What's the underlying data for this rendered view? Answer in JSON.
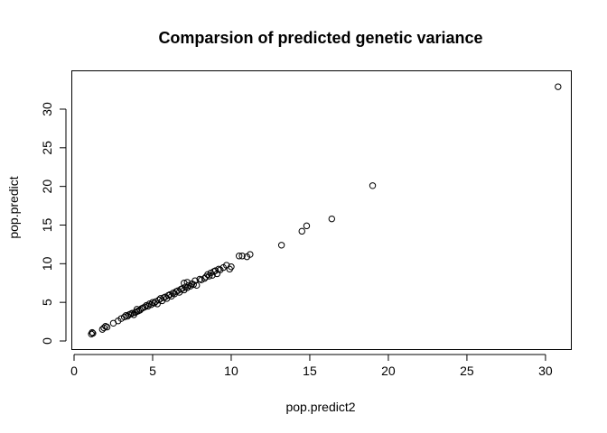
{
  "chart_data": {
    "type": "scatter",
    "title": "Comparsion of predicted genetic variance",
    "xlabel": "pop.predict2",
    "ylabel": "pop.predict",
    "xlim": [
      0,
      31.5
    ],
    "ylim": [
      0,
      33.5
    ],
    "xticks": [
      0,
      5,
      10,
      15,
      20,
      25,
      30
    ],
    "yticks": [
      0,
      5,
      10,
      15,
      20,
      25,
      30
    ],
    "grid": false,
    "legend": "none",
    "marker_color": "#000000",
    "points": [
      [
        1.1,
        0.9
      ],
      [
        1.15,
        1.1
      ],
      [
        1.2,
        1.0
      ],
      [
        1.8,
        1.5
      ],
      [
        1.9,
        1.7
      ],
      [
        2.0,
        1.9
      ],
      [
        2.1,
        1.8
      ],
      [
        2.5,
        2.3
      ],
      [
        2.8,
        2.6
      ],
      [
        3.0,
        2.9
      ],
      [
        3.2,
        3.1
      ],
      [
        3.3,
        3.3
      ],
      [
        3.4,
        3.2
      ],
      [
        3.5,
        3.4
      ],
      [
        3.6,
        3.5
      ],
      [
        3.7,
        3.6
      ],
      [
        3.8,
        3.4
      ],
      [
        3.9,
        3.7
      ],
      [
        4.0,
        3.8
      ],
      [
        4.0,
        4.1
      ],
      [
        4.1,
        3.9
      ],
      [
        4.2,
        4.0
      ],
      [
        4.3,
        4.2
      ],
      [
        4.4,
        4.3
      ],
      [
        4.5,
        4.4
      ],
      [
        4.6,
        4.6
      ],
      [
        4.7,
        4.5
      ],
      [
        4.8,
        4.8
      ],
      [
        4.9,
        4.7
      ],
      [
        5.0,
        5.0
      ],
      [
        5.1,
        4.9
      ],
      [
        5.2,
        5.1
      ],
      [
        5.3,
        4.8
      ],
      [
        5.4,
        5.3
      ],
      [
        5.5,
        5.5
      ],
      [
        5.6,
        5.2
      ],
      [
        5.7,
        5.6
      ],
      [
        5.8,
        5.7
      ],
      [
        5.9,
        5.5
      ],
      [
        6.0,
        5.9
      ],
      [
        6.1,
        6.0
      ],
      [
        6.2,
        5.8
      ],
      [
        6.3,
        6.2
      ],
      [
        6.4,
        6.1
      ],
      [
        6.5,
        6.4
      ],
      [
        6.6,
        6.5
      ],
      [
        6.7,
        6.3
      ],
      [
        6.8,
        6.7
      ],
      [
        6.9,
        6.8
      ],
      [
        7.0,
        6.6
      ],
      [
        7.1,
        7.0
      ],
      [
        7.2,
        6.9
      ],
      [
        7.3,
        7.2
      ],
      [
        7.4,
        7.1
      ],
      [
        7.5,
        7.4
      ],
      [
        7.6,
        7.3
      ],
      [
        7.0,
        7.5
      ],
      [
        7.2,
        7.6
      ],
      [
        7.7,
        7.8
      ],
      [
        7.8,
        7.2
      ],
      [
        8.0,
        8.0
      ],
      [
        8.1,
        7.9
      ],
      [
        8.3,
        8.1
      ],
      [
        8.4,
        8.3
      ],
      [
        8.5,
        8.6
      ],
      [
        8.6,
        8.4
      ],
      [
        8.7,
        8.8
      ],
      [
        8.8,
        8.5
      ],
      [
        8.9,
        9.0
      ],
      [
        9.0,
        9.1
      ],
      [
        9.1,
        8.7
      ],
      [
        9.2,
        9.3
      ],
      [
        9.3,
        9.2
      ],
      [
        9.5,
        9.5
      ],
      [
        9.7,
        9.8
      ],
      [
        9.9,
        9.3
      ],
      [
        10.0,
        9.6
      ],
      [
        10.5,
        11.0
      ],
      [
        10.7,
        11.0
      ],
      [
        11.0,
        10.9
      ],
      [
        11.2,
        11.2
      ],
      [
        13.2,
        12.4
      ],
      [
        14.5,
        14.2
      ],
      [
        14.8,
        14.9
      ],
      [
        16.4,
        15.8
      ],
      [
        19.0,
        20.1
      ],
      [
        30.8,
        32.9
      ]
    ]
  }
}
